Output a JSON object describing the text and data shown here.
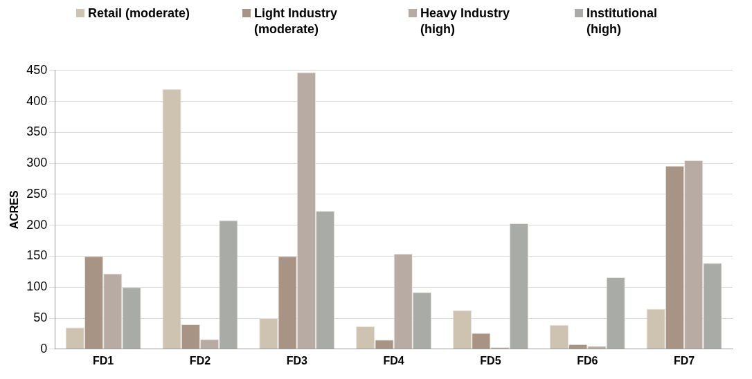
{
  "chart_data": {
    "type": "bar",
    "ylabel": "ACRES",
    "categories": [
      "FD1",
      "FD2",
      "FD3",
      "FD4",
      "FD5",
      "FD6",
      "FD7"
    ],
    "series": [
      {
        "name": "Retail (moderate)",
        "color": "#cdc3b0",
        "values": [
          35,
          420,
          50,
          37,
          63,
          39,
          65
        ]
      },
      {
        "name": "Light Industry (moderate)",
        "color": "#a89484",
        "values": [
          150,
          40,
          150,
          15,
          26,
          8,
          296
        ]
      },
      {
        "name": "Heavy Industry (high)",
        "color": "#b8aba4",
        "values": [
          122,
          16,
          447,
          154,
          3,
          5,
          305
        ]
      },
      {
        "name": "Institutional (high)",
        "color": "#a9aba6",
        "values": [
          100,
          208,
          223,
          92,
          203,
          116,
          139
        ]
      }
    ],
    "ylim": [
      0,
      450
    ],
    "yticks": [
      0,
      50,
      100,
      150,
      200,
      250,
      300,
      350,
      400,
      450
    ],
    "grid": "y",
    "legend": "top left"
  }
}
